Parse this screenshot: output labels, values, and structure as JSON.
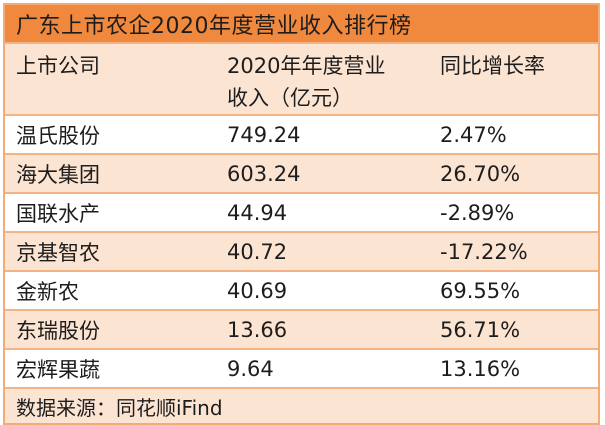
{
  "title": "广东上市农企2020年度营业收入排行榜",
  "colors": {
    "title-bg": "#F0883E",
    "peach": "#FCE4D3",
    "border": "#F3AC78",
    "line": "#F4B285",
    "text": "#1D1D1D"
  },
  "table": {
    "header": {
      "company": "上市公司",
      "revenue_line1": "2020年年度营业",
      "revenue_line2": "收入（亿元）",
      "growth": "同比增长率"
    },
    "rows": [
      {
        "company": "温氏股份",
        "revenue": "749.24",
        "growth": "2.47%"
      },
      {
        "company": "海大集团",
        "revenue": "603.24",
        "growth": "26.70%"
      },
      {
        "company": "国联水产",
        "revenue": "44.94",
        "growth": "-2.89%"
      },
      {
        "company": "京基智农",
        "revenue": "40.72",
        "growth": "-17.22%"
      },
      {
        "company": "金新农",
        "revenue": "40.69",
        "growth": "69.55%"
      },
      {
        "company": "东瑞股份",
        "revenue": "13.66",
        "growth": "56.71%"
      },
      {
        "company": "宏辉果蔬",
        "revenue": "9.64",
        "growth": "13.16%"
      }
    ],
    "source": "数据来源：同花顺iFind"
  },
  "chart_data": {
    "type": "table",
    "title": "广东上市农企2020年度营业收入排行榜",
    "columns": [
      "上市公司",
      "2020年年度营业收入（亿元）",
      "同比增长率"
    ],
    "categories": [
      "温氏股份",
      "海大集团",
      "国联水产",
      "京基智农",
      "金新农",
      "东瑞股份",
      "宏辉果蔬"
    ],
    "series": [
      {
        "name": "2020年年度营业收入（亿元）",
        "values": [
          749.24,
          603.24,
          44.94,
          40.72,
          40.69,
          13.66,
          9.64
        ]
      },
      {
        "name": "同比增长率(%)",
        "values": [
          2.47,
          26.7,
          -2.89,
          -17.22,
          69.55,
          56.71,
          13.16
        ]
      }
    ],
    "source": "数据来源：同花顺iFind"
  }
}
